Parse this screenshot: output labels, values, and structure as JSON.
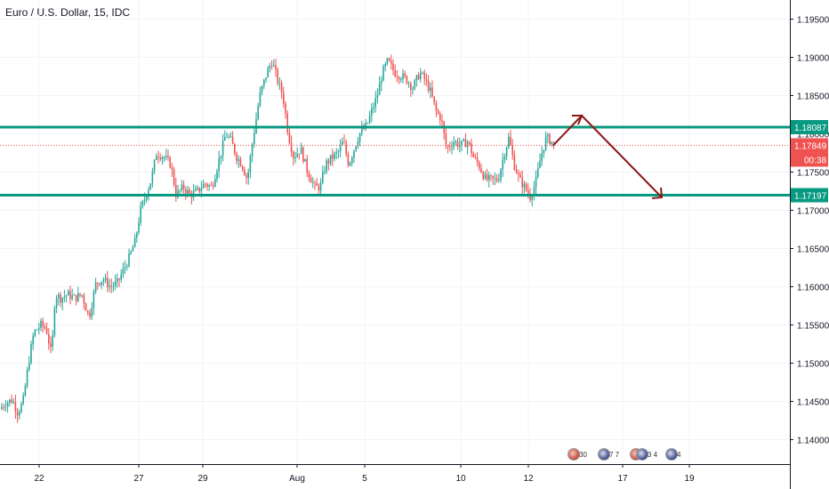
{
  "title": "Euro / U.S. Dollar, 15, IDC",
  "chart_data": {
    "type": "candlestick",
    "title": "Euro / U.S. Dollar, 15, IDC",
    "ylim": [
      1.1368,
      1.1975
    ],
    "y_ticks": [
      "1.14000",
      "1.14500",
      "1.15000",
      "1.15500",
      "1.16000",
      "1.16500",
      "1.17000",
      "1.17500",
      "1.18000",
      "1.18500",
      "1.19000",
      "1.19500"
    ],
    "x_ticks": [
      "22",
      "27",
      "29",
      "Aug",
      "5",
      "10",
      "12",
      "17",
      "19"
    ],
    "price_path": [
      [
        0,
        1.144
      ],
      [
        6,
        1.1448
      ],
      [
        14,
        1.1452
      ],
      [
        20,
        1.1435
      ],
      [
        26,
        1.145
      ],
      [
        32,
        1.15
      ],
      [
        38,
        1.154
      ],
      [
        46,
        1.155
      ],
      [
        52,
        1.1545
      ],
      [
        58,
        1.151
      ],
      [
        62,
        1.159
      ],
      [
        68,
        1.1585
      ],
      [
        76,
        1.159
      ],
      [
        84,
        1.1585
      ],
      [
        92,
        1.159
      ],
      [
        100,
        1.156
      ],
      [
        108,
        1.1605
      ],
      [
        116,
        1.161
      ],
      [
        124,
        1.16
      ],
      [
        132,
        1.1605
      ],
      [
        138,
        1.162
      ],
      [
        146,
        1.164
      ],
      [
        152,
        1.166
      ],
      [
        158,
        1.17
      ],
      [
        164,
        1.172
      ],
      [
        170,
        1.174
      ],
      [
        176,
        1.1775
      ],
      [
        184,
        1.177
      ],
      [
        192,
        1.176
      ],
      [
        198,
        1.172
      ],
      [
        206,
        1.173
      ],
      [
        214,
        1.172
      ],
      [
        222,
        1.1725
      ],
      [
        230,
        1.1735
      ],
      [
        238,
        1.173
      ],
      [
        246,
        1.1765
      ],
      [
        254,
        1.18
      ],
      [
        260,
        1.179
      ],
      [
        266,
        1.177
      ],
      [
        272,
        1.176
      ],
      [
        278,
        1.174
      ],
      [
        284,
        1.179
      ],
      [
        292,
        1.185
      ],
      [
        300,
        1.188
      ],
      [
        306,
        1.1895
      ],
      [
        312,
        1.187
      ],
      [
        318,
        1.185
      ],
      [
        324,
        1.18
      ],
      [
        330,
        1.177
      ],
      [
        338,
        1.178
      ],
      [
        346,
        1.175
      ],
      [
        354,
        1.173
      ],
      [
        360,
        1.173
      ],
      [
        366,
        1.176
      ],
      [
        374,
        1.177
      ],
      [
        380,
        1.1775
      ],
      [
        386,
        1.179
      ],
      [
        392,
        1.176
      ],
      [
        398,
        1.178
      ],
      [
        404,
        1.18
      ],
      [
        412,
        1.181
      ],
      [
        418,
        1.183
      ],
      [
        424,
        1.185
      ],
      [
        430,
        1.188
      ],
      [
        436,
        1.1895
      ],
      [
        444,
        1.188
      ],
      [
        452,
        1.1875
      ],
      [
        458,
        1.187
      ],
      [
        464,
        1.186
      ],
      [
        472,
        1.188
      ],
      [
        478,
        1.187
      ],
      [
        484,
        1.1855
      ],
      [
        490,
        1.183
      ],
      [
        496,
        1.182
      ],
      [
        502,
        1.178
      ],
      [
        510,
        1.179
      ],
      [
        518,
        1.1785
      ],
      [
        526,
        1.179
      ],
      [
        532,
        1.177
      ],
      [
        538,
        1.176
      ],
      [
        546,
        1.174
      ],
      [
        552,
        1.174
      ],
      [
        560,
        1.174
      ],
      [
        566,
        1.177
      ],
      [
        572,
        1.1795
      ],
      [
        578,
        1.176
      ],
      [
        584,
        1.174
      ],
      [
        590,
        1.173
      ],
      [
        596,
        1.1718
      ],
      [
        602,
        1.1735
      ],
      [
        608,
        1.177
      ],
      [
        614,
        1.1795
      ],
      [
        620,
        1.179
      ],
      [
        624,
        1.1784
      ]
    ],
    "support_level": 1.17197,
    "resistance_level": 1.18087,
    "last_price": 1.17849,
    "last_price_label": "1.17849",
    "support_label": "1.17197",
    "resistance_label": "1.18087",
    "countdown": "00:38",
    "colors": {
      "up": "#26a69a",
      "down": "#ef5350",
      "levels": "#089981",
      "arrow": "#8b1a1a",
      "last": "#ef5350",
      "axis_text": "#131722"
    }
  },
  "events": [
    {
      "flag": "eu",
      "count": "30"
    },
    {
      "flag": "us",
      "count": "7 7"
    },
    {
      "flag": "eu",
      "count": "3 4"
    },
    {
      "flag": "us",
      "count": "4"
    }
  ]
}
